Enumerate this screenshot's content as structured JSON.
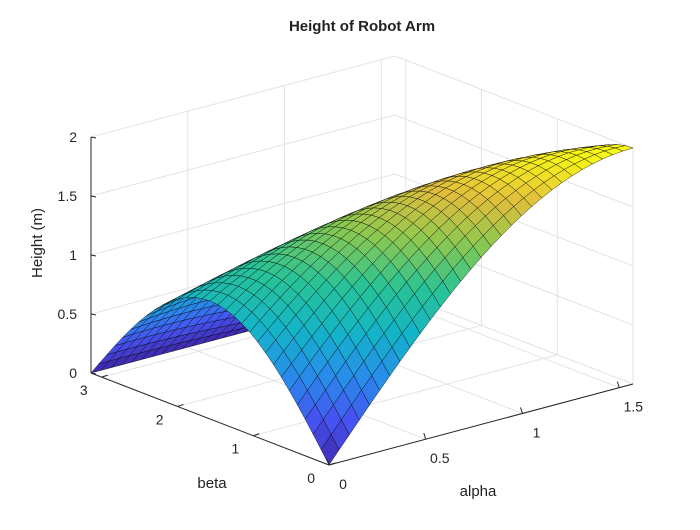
{
  "chart_data": {
    "type": "surface",
    "title": "Height of Robot Arm",
    "xlabel": "alpha",
    "ylabel": "beta",
    "zlabel": "Height (m)",
    "xlim": [
      0,
      1.5708
    ],
    "ylim": [
      0,
      3.1416
    ],
    "zlim": [
      0,
      2
    ],
    "xticks": [
      "0",
      "0.5",
      "1",
      "1.5"
    ],
    "yticks": [
      "0",
      "1",
      "2",
      "3"
    ],
    "zticks": [
      "0",
      "0.5",
      "1",
      "1.5",
      "2"
    ],
    "grid": true,
    "colormap": "parula",
    "edgecolor": "#000000",
    "surface": {
      "x_samples": [
        0,
        0.0524,
        0.1047,
        0.1571,
        0.2094,
        0.2618,
        0.3142,
        0.3665,
        0.4189,
        0.4712,
        0.5236,
        0.576,
        0.6283,
        0.6807,
        0.733,
        0.7854,
        0.8378,
        0.8901,
        0.9425,
        0.9948,
        1.0472,
        1.0996,
        1.1519,
        1.2043,
        1.2566,
        1.309,
        1.3614,
        1.4137,
        1.4661,
        1.5184,
        1.5708
      ],
      "y_samples": [
        0,
        0.1047,
        0.2094,
        0.3142,
        0.4189,
        0.5236,
        0.6283,
        0.733,
        0.8378,
        0.9425,
        1.0472,
        1.1519,
        1.2566,
        1.3614,
        1.4661,
        1.5708,
        1.6755,
        1.7802,
        1.885,
        1.9897,
        2.0944,
        2.1991,
        2.3038,
        2.4086,
        2.5133,
        2.618,
        2.7227,
        2.8274,
        2.9322,
        3.0369,
        3.1416
      ],
      "z_corners": {
        "alpha_0_beta_0": 0,
        "alpha_0_beta_pi": 0,
        "alpha_pi2_beta_0": 2,
        "alpha_pi2_beta_pi": 0,
        "alpha_0_beta_pi2": 0.7,
        "alpha_pi2_beta_pi2": 1.75
      }
    }
  }
}
